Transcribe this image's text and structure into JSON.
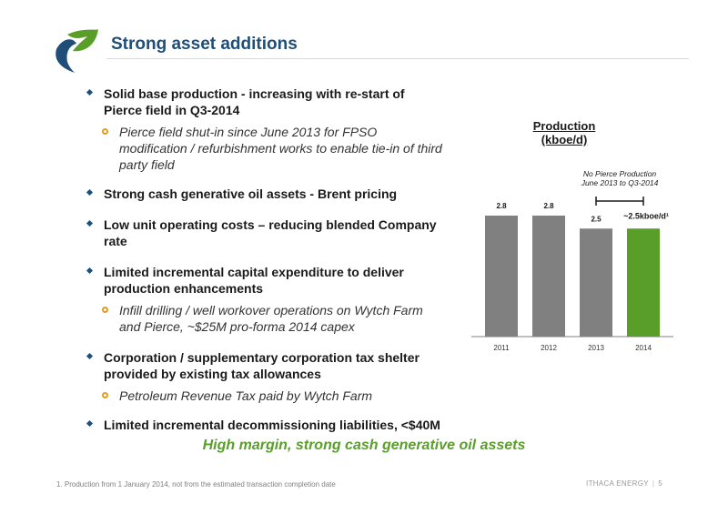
{
  "slide": {
    "title": "Strong asset additions",
    "bullets": [
      {
        "text": "Solid base production - increasing with re-start of Pierce field in Q3-2014",
        "subs": [
          "Pierce field shut-in since June 2013 for FPSO modification / refurbishment works to enable tie-in of third party field"
        ]
      },
      {
        "text": "Strong cash generative oil assets - Brent pricing",
        "subs": []
      },
      {
        "text": "Low unit operating costs – reducing blended Company rate",
        "subs": []
      },
      {
        "text": "Limited incremental capital expenditure to deliver production enhancements",
        "subs": [
          "Infill drilling / well workover operations on Wytch Farm and Pierce, ~$25M pro-forma 2014 capex"
        ]
      },
      {
        "text": "Corporation / supplementary corporation tax shelter provided by existing tax allowances",
        "subs": [
          "Petroleum Revenue Tax paid by Wytch Farm"
        ]
      },
      {
        "text": "Limited incremental decommissioning liabilities, <$40M",
        "subs": []
      }
    ],
    "tagline": "High margin, strong cash generative oil assets",
    "footnote": "1. Production from 1 January 2014, not from the estimated transaction completion date",
    "company": "ITHACA ENERGY",
    "page_number": "5"
  },
  "colors": {
    "title": "#1f4e79",
    "bullet": "#1f4e79",
    "sub_bullet": "#e89b1a",
    "bar_grey": "#808080",
    "bar_green": "#5a9e2a",
    "tagline": "#5a9e2a"
  },
  "chart_data": {
    "type": "bar",
    "title": "Production (kboe/d)",
    "categories": [
      "2011",
      "2012",
      "2013",
      "2014"
    ],
    "values": [
      2.8,
      2.8,
      2.5,
      2.5
    ],
    "data_labels": [
      "2.8",
      "2.8",
      "2.5",
      "~2.5kboe/d¹"
    ],
    "highlight_index": 3,
    "ylim": [
      0,
      2.8
    ],
    "grid": false,
    "annotation": {
      "text": [
        "No Pierce Production",
        "June 2013 to Q3-2014"
      ],
      "span": [
        "2013",
        "2014"
      ]
    }
  }
}
